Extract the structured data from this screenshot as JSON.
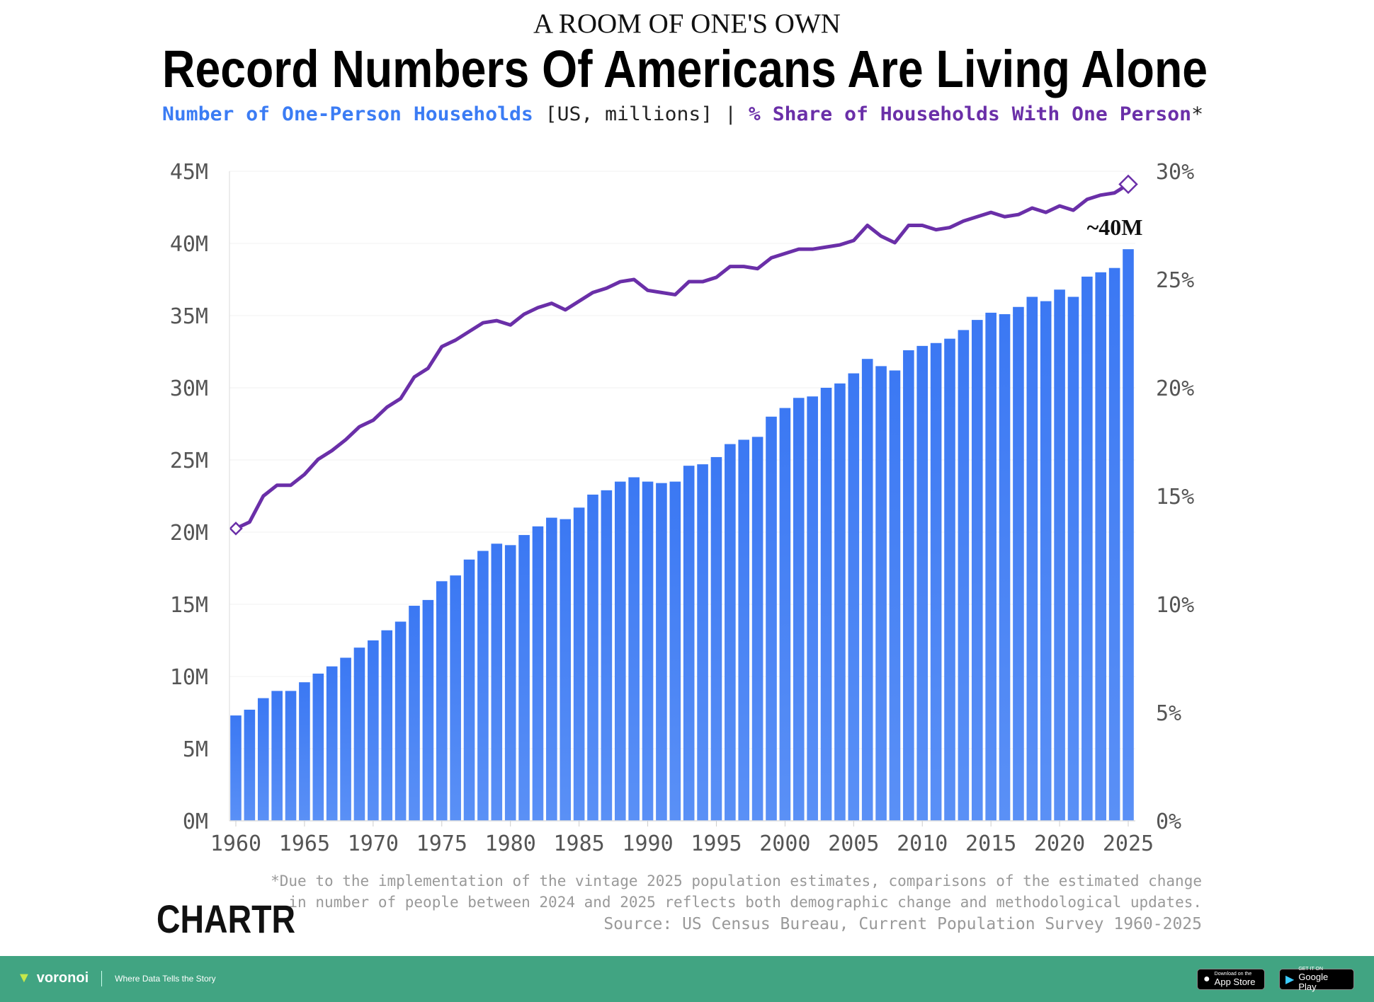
{
  "header": {
    "kicker": "A ROOM OF ONE'S OWN",
    "title": "Record Numbers Of Americans Are Living Alone",
    "subtitle_series1": "Number of One-Person Households",
    "subtitle_units": " [US, millions] | ",
    "subtitle_series2": "% Share of Households With One Person",
    "subtitle_asterisk": "*"
  },
  "colors": {
    "bars": "#3b7cf4",
    "line": "#6a2fa8",
    "series1_text": "#3b7cf4",
    "series2_text": "#6a2fa8",
    "footer_bg": "#41a482"
  },
  "chart_data": {
    "type": "bar+line",
    "x": [
      1960,
      1961,
      1962,
      1963,
      1964,
      1965,
      1966,
      1967,
      1968,
      1969,
      1970,
      1971,
      1972,
      1973,
      1974,
      1975,
      1976,
      1977,
      1978,
      1979,
      1980,
      1981,
      1982,
      1983,
      1984,
      1985,
      1986,
      1987,
      1988,
      1989,
      1990,
      1991,
      1992,
      1993,
      1994,
      1995,
      1996,
      1997,
      1998,
      1999,
      2000,
      2001,
      2002,
      2003,
      2004,
      2005,
      2006,
      2007,
      2008,
      2009,
      2010,
      2011,
      2012,
      2013,
      2014,
      2015,
      2016,
      2017,
      2018,
      2019,
      2020,
      2021,
      2022,
      2023,
      2024,
      2025
    ],
    "series": [
      {
        "name": "Number of One-Person Households",
        "type": "bar",
        "axis": "left",
        "values": [
          7.3,
          7.7,
          8.5,
          9.0,
          9.0,
          9.6,
          10.2,
          10.7,
          11.3,
          12.0,
          12.5,
          13.2,
          13.8,
          14.9,
          15.3,
          16.6,
          17.0,
          18.1,
          18.7,
          19.2,
          19.1,
          19.8,
          20.4,
          21.0,
          20.9,
          21.7,
          22.6,
          22.9,
          23.5,
          23.8,
          23.5,
          23.4,
          23.5,
          24.6,
          24.7,
          25.2,
          26.1,
          26.4,
          26.6,
          28.0,
          28.6,
          29.3,
          29.4,
          30.0,
          30.3,
          31.0,
          32.0,
          31.5,
          31.2,
          32.6,
          32.9,
          33.1,
          33.4,
          34.0,
          34.7,
          35.2,
          35.1,
          35.6,
          36.3,
          36.0,
          36.8,
          36.3,
          37.7,
          38.0,
          38.3,
          39.6
        ]
      },
      {
        "name": "% Share of Households With One Person",
        "type": "line",
        "axis": "right",
        "values": [
          13.5,
          13.8,
          15.0,
          15.5,
          15.5,
          16.0,
          16.7,
          17.1,
          17.6,
          18.2,
          18.5,
          19.1,
          19.5,
          20.5,
          20.9,
          21.9,
          22.2,
          22.6,
          23.0,
          23.1,
          22.9,
          23.4,
          23.7,
          23.9,
          23.6,
          24.0,
          24.4,
          24.6,
          24.9,
          25.0,
          24.5,
          24.4,
          24.3,
          24.9,
          24.9,
          25.1,
          25.6,
          25.6,
          25.5,
          26.0,
          26.2,
          26.4,
          26.4,
          26.5,
          26.6,
          26.8,
          27.5,
          27.0,
          26.7,
          27.5,
          27.5,
          27.3,
          27.4,
          27.7,
          27.9,
          28.1,
          27.9,
          28.0,
          28.3,
          28.1,
          28.4,
          28.2,
          28.7,
          28.9,
          29.0,
          29.4
        ]
      }
    ],
    "ylim_left": [
      0,
      45
    ],
    "ylim_right": [
      0,
      30
    ],
    "left_ticks": [
      "0M",
      "5M",
      "10M",
      "15M",
      "20M",
      "25M",
      "30M",
      "35M",
      "40M",
      "45M"
    ],
    "right_ticks": [
      "0%",
      "5%",
      "10%",
      "15%",
      "20%",
      "25%",
      "30%"
    ],
    "x_ticks": [
      "1960",
      "1965",
      "1970",
      "1975",
      "1980",
      "1985",
      "1990",
      "1995",
      "2000",
      "2005",
      "2010",
      "2015",
      "2020",
      "2025"
    ],
    "annotation": "~40M",
    "grid": true
  },
  "notes": {
    "line1": "*Due to the implementation of the vintage 2025 population estimates, comparisons of the estimated change",
    "line2": "in number of people between 2024 and 2025 reflects both demographic change and methodological updates.",
    "source": "Source: US Census Bureau, Current Population Survey 1960-2025"
  },
  "logo": "CHARTR",
  "footer": {
    "brand": "voronoi",
    "tagline": "Where Data Tells the Story",
    "appstore_small": "Download on the",
    "appstore_big": "App Store",
    "googleplay_small": "GET IT ON",
    "googleplay_big": "Google Play"
  }
}
